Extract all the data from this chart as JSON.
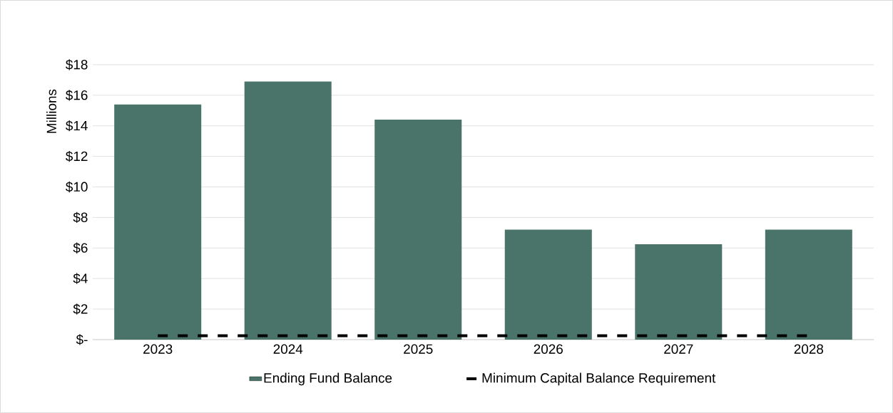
{
  "chart_data": {
    "type": "bar",
    "ylabel": "Millions",
    "categories": [
      "2023",
      "2024",
      "2025",
      "2026",
      "2027",
      "2028"
    ],
    "series": [
      {
        "name": "Ending Fund Balance",
        "color": "#4a7469",
        "values": [
          15.4,
          16.9,
          14.4,
          7.2,
          6.25,
          7.2
        ]
      },
      {
        "name": "Minimum Capital Balance Requirement",
        "type": "line",
        "color": "#000000",
        "line_style": "dashed",
        "values": [
          0.25,
          0.25,
          0.25,
          0.25,
          0.25,
          0.25
        ]
      }
    ],
    "ylim": [
      0,
      18
    ],
    "yticks": [
      {
        "value": 0,
        "label": "$-"
      },
      {
        "value": 2,
        "label": "$2"
      },
      {
        "value": 4,
        "label": "$4"
      },
      {
        "value": 6,
        "label": "$6"
      },
      {
        "value": 8,
        "label": "$8"
      },
      {
        "value": 10,
        "label": "$10"
      },
      {
        "value": 12,
        "label": "$12"
      },
      {
        "value": 14,
        "label": "$14"
      },
      {
        "value": 16,
        "label": "$16"
      },
      {
        "value": 18,
        "label": "$18"
      }
    ],
    "grid": "y",
    "legend": "bottom"
  }
}
